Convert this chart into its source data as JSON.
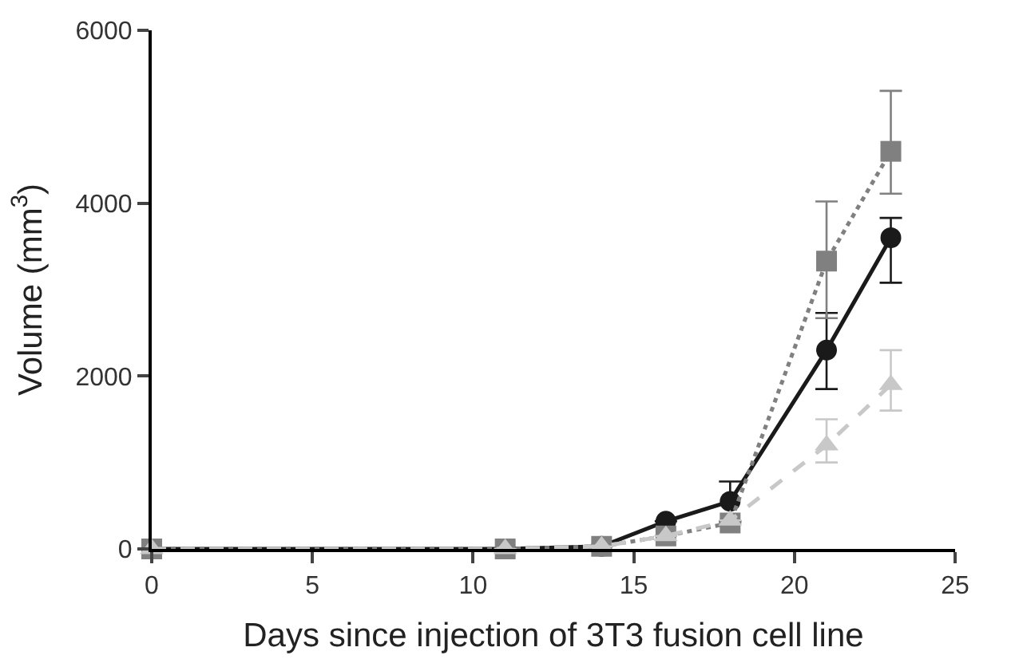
{
  "chart_data": {
    "type": "line",
    "xlabel": "Days since injection of 3T3 fusion cell line",
    "ylabel": "Volume (mm$^{3}$)",
    "x": [
      0,
      11,
      14,
      16,
      18,
      21,
      23
    ],
    "xlim": [
      0,
      25
    ],
    "xticks": [
      0,
      5,
      10,
      15,
      20,
      25
    ],
    "ylim": [
      0,
      6000
    ],
    "yticks": [
      0,
      2000,
      4000,
      6000
    ],
    "series": [
      {
        "color": "#1a1a1a",
        "marker": "circle",
        "line_style": "solid",
        "values": [
          0,
          0,
          30,
          320,
          550,
          2300,
          3600
        ],
        "errors": [
          null,
          null,
          null,
          null,
          230,
          [
            1850,
            2730
          ],
          [
            3080,
            3830
          ]
        ]
      },
      {
        "color": "#808080",
        "marker": "square",
        "line_style": "dotted",
        "values": [
          0,
          0,
          30,
          150,
          300,
          3330,
          4600
        ],
        "errors": [
          null,
          null,
          null,
          null,
          null,
          [
            2670,
            4020
          ],
          [
            4110,
            5300
          ]
        ]
      },
      {
        "color": "#c8c8c8",
        "marker": "triangle",
        "line_style": "dashed",
        "values": [
          0,
          0,
          30,
          150,
          330,
          1200,
          1900
        ],
        "errors": [
          null,
          null,
          null,
          null,
          null,
          [
            1000,
            1500
          ],
          [
            1600,
            2300
          ]
        ]
      }
    ]
  }
}
